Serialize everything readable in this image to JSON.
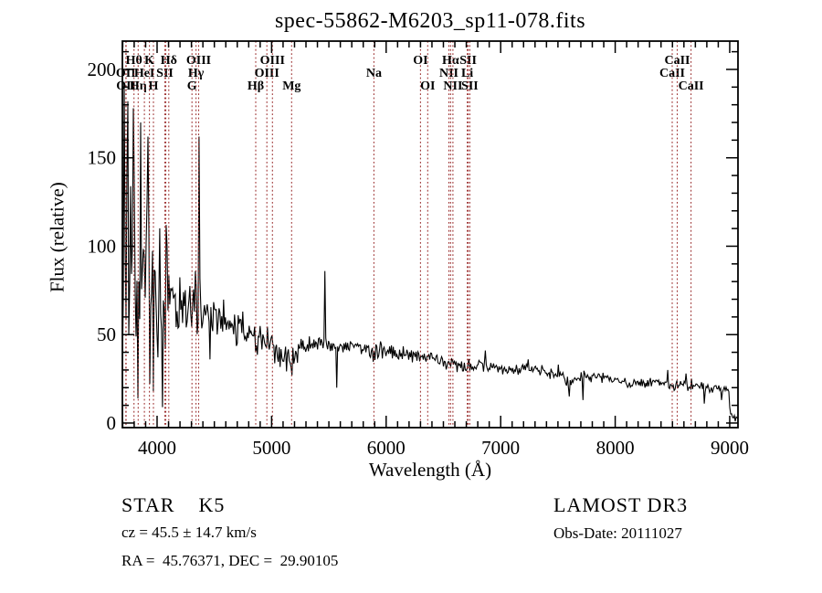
{
  "annotations": {
    "class_line": "STAR    K5",
    "cz_line": "cz = 45.5 ± 14.7 km/s",
    "radec_line": "RA =  45.76371, DEC =  29.90105",
    "survey": "LAMOST DR3",
    "obs_date": "Obs-Date: 20111027"
  },
  "chart_data": {
    "type": "line",
    "title": "spec-55862-M6203_sp11-078.fits",
    "xlabel": "Wavelength (Å)",
    "ylabel": "Flux (relative)",
    "xlim": [
      3697,
      9072
    ],
    "ylim": [
      -2.6,
      216
    ],
    "xticks": [
      4000,
      5000,
      6000,
      7000,
      8000,
      9000
    ],
    "yticks": [
      0,
      50,
      100,
      150,
      200
    ],
    "x_minor_step": 100,
    "y_minor_step": 10,
    "grid": false,
    "legend": "none",
    "series_color": "#000000",
    "line_marker_color": "#9e3434",
    "spectral_lines": [
      {
        "label": "OII",
        "wavelength": 3727,
        "row": 2
      },
      {
        "label": "OII",
        "wavelength": 3730,
        "row": 3
      },
      {
        "label": "Hθ",
        "wavelength": 3798,
        "row": 1
      },
      {
        "label": "Hη",
        "wavelength": 3835,
        "row": 3
      },
      {
        "label": "HeI",
        "wavelength": 3889,
        "row": 2
      },
      {
        "label": "K",
        "wavelength": 3933,
        "row": 1
      },
      {
        "label": "H",
        "wavelength": 3968,
        "row": 3
      },
      {
        "label": "SII",
        "wavelength": 4068,
        "row": 2
      },
      {
        "label": "",
        "wavelength": 4076,
        "row": 0
      },
      {
        "label": "Hδ",
        "wavelength": 4102,
        "row": 1
      },
      {
        "label": "G",
        "wavelength": 4305,
        "row": 3
      },
      {
        "label": "Hγ",
        "wavelength": 4340,
        "row": 2
      },
      {
        "label": "OIII",
        "wavelength": 4363,
        "row": 1
      },
      {
        "label": "Hβ",
        "wavelength": 4861,
        "row": 3
      },
      {
        "label": "OIII",
        "wavelength": 4959,
        "row": 2
      },
      {
        "label": "OIII",
        "wavelength": 5007,
        "row": 1
      },
      {
        "label": "Mg",
        "wavelength": 5175,
        "row": 3
      },
      {
        "label": "Na",
        "wavelength": 5893,
        "row": 2
      },
      {
        "label": "OI",
        "wavelength": 6300,
        "row": 1
      },
      {
        "label": "OI",
        "wavelength": 6363,
        "row": 3
      },
      {
        "label": "NII",
        "wavelength": 6548,
        "row": 2
      },
      {
        "label": "Hα",
        "wavelength": 6563,
        "row": 1
      },
      {
        "label": "NII",
        "wavelength": 6583,
        "row": 3
      },
      {
        "label": "Li",
        "wavelength": 6708,
        "row": 2
      },
      {
        "label": "SII",
        "wavelength": 6716,
        "row": 1
      },
      {
        "label": "SII",
        "wavelength": 6731,
        "row": 3
      },
      {
        "label": "CaII",
        "wavelength": 8498,
        "row": 2
      },
      {
        "label": "CaII",
        "wavelength": 8542,
        "row": 1
      },
      {
        "label": "CaII",
        "wavelength": 8662,
        "row": 3
      }
    ],
    "spectrum": {
      "envelope": [
        [
          3697,
          1
        ],
        [
          3700,
          55
        ],
        [
          3712,
          95
        ],
        [
          3725,
          92
        ],
        [
          3740,
          95
        ],
        [
          3760,
          92
        ],
        [
          3780,
          92
        ],
        [
          3800,
          90
        ],
        [
          3820,
          88
        ],
        [
          3840,
          86
        ],
        [
          3860,
          86
        ],
        [
          3880,
          82
        ],
        [
          3900,
          80
        ],
        [
          3920,
          76
        ],
        [
          3940,
          74
        ],
        [
          3960,
          72
        ],
        [
          3980,
          70
        ],
        [
          4000,
          70
        ],
        [
          4030,
          70
        ],
        [
          4060,
          71
        ],
        [
          4090,
          72
        ],
        [
          4120,
          70
        ],
        [
          4150,
          69
        ],
        [
          4180,
          68
        ],
        [
          4210,
          67
        ],
        [
          4240,
          66
        ],
        [
          4270,
          67
        ],
        [
          4300,
          68
        ],
        [
          4330,
          69
        ],
        [
          4360,
          68
        ],
        [
          4390,
          64
        ],
        [
          4420,
          63
        ],
        [
          4450,
          62
        ],
        [
          4480,
          61
        ],
        [
          4510,
          61
        ],
        [
          4540,
          60
        ],
        [
          4570,
          59
        ],
        [
          4600,
          58
        ],
        [
          4650,
          56
        ],
        [
          4700,
          55
        ],
        [
          4750,
          53
        ],
        [
          4800,
          51
        ],
        [
          4861,
          48
        ],
        [
          4910,
          47
        ],
        [
          4960,
          45
        ],
        [
          5010,
          43
        ],
        [
          5060,
          39
        ],
        [
          5110,
          37
        ],
        [
          5160,
          36
        ],
        [
          5210,
          40
        ],
        [
          5260,
          42
        ],
        [
          5310,
          43
        ],
        [
          5360,
          44
        ],
        [
          5410,
          44
        ],
        [
          5460,
          44
        ],
        [
          5510,
          44
        ],
        [
          5560,
          43
        ],
        [
          5610,
          44
        ],
        [
          5660,
          44
        ],
        [
          5710,
          44
        ],
        [
          5760,
          43
        ],
        [
          5810,
          43
        ],
        [
          5860,
          41
        ],
        [
          5893,
          39
        ],
        [
          5930,
          41
        ],
        [
          5980,
          41
        ],
        [
          6030,
          41
        ],
        [
          6080,
          40
        ],
        [
          6130,
          40
        ],
        [
          6180,
          39
        ],
        [
          6230,
          39
        ],
        [
          6280,
          38
        ],
        [
          6330,
          38
        ],
        [
          6380,
          37
        ],
        [
          6430,
          36
        ],
        [
          6480,
          35
        ],
        [
          6530,
          34
        ],
        [
          6580,
          33
        ],
        [
          6630,
          33
        ],
        [
          6680,
          32
        ],
        [
          6730,
          32
        ],
        [
          6780,
          32
        ],
        [
          6830,
          33
        ],
        [
          6880,
          32
        ],
        [
          6930,
          31
        ],
        [
          6980,
          31
        ],
        [
          7030,
          30
        ],
        [
          7080,
          30
        ],
        [
          7130,
          30
        ],
        [
          7180,
          30
        ],
        [
          7230,
          31
        ],
        [
          7280,
          30
        ],
        [
          7330,
          29
        ],
        [
          7380,
          29
        ],
        [
          7430,
          28
        ],
        [
          7480,
          27
        ],
        [
          7530,
          26
        ],
        [
          7580,
          23
        ],
        [
          7620,
          24
        ],
        [
          7660,
          25
        ],
        [
          7700,
          26
        ],
        [
          7750,
          26
        ],
        [
          7800,
          26
        ],
        [
          7850,
          26
        ],
        [
          7900,
          25
        ],
        [
          7950,
          25
        ],
        [
          8000,
          24
        ],
        [
          8060,
          24
        ],
        [
          8120,
          23
        ],
        [
          8180,
          23
        ],
        [
          8240,
          23
        ],
        [
          8300,
          22
        ],
        [
          8360,
          22
        ],
        [
          8420,
          22
        ],
        [
          8480,
          21
        ],
        [
          8540,
          21
        ],
        [
          8600,
          21
        ],
        [
          8660,
          22
        ],
        [
          8720,
          21
        ],
        [
          8780,
          20
        ],
        [
          8840,
          20
        ],
        [
          8900,
          19
        ],
        [
          8960,
          19
        ],
        [
          8995,
          18
        ],
        [
          9005,
          4
        ],
        [
          9030,
          3
        ],
        [
          9072,
          2
        ]
      ],
      "noise_sigma": [
        [
          3697,
          45
        ],
        [
          3720,
          58
        ],
        [
          3750,
          58
        ],
        [
          3780,
          52
        ],
        [
          3810,
          48
        ],
        [
          3840,
          46
        ],
        [
          3870,
          44
        ],
        [
          3900,
          42
        ],
        [
          3930,
          40
        ],
        [
          3960,
          36
        ],
        [
          4000,
          30
        ],
        [
          4050,
          26
        ],
        [
          4100,
          24
        ],
        [
          4150,
          18
        ],
        [
          4200,
          15
        ],
        [
          4250,
          13
        ],
        [
          4300,
          13
        ],
        [
          4350,
          13
        ],
        [
          4400,
          11
        ],
        [
          4500,
          9
        ],
        [
          4600,
          8
        ],
        [
          4700,
          8
        ],
        [
          4800,
          7
        ],
        [
          4900,
          7
        ],
        [
          5000,
          6
        ],
        [
          5100,
          6
        ],
        [
          5200,
          5
        ],
        [
          5300,
          5
        ],
        [
          5400,
          5
        ],
        [
          5500,
          4.5
        ],
        [
          5600,
          4.5
        ],
        [
          5700,
          4
        ],
        [
          5800,
          4
        ],
        [
          5900,
          4
        ],
        [
          6000,
          3.5
        ],
        [
          6200,
          3.5
        ],
        [
          6400,
          3
        ],
        [
          6600,
          3
        ],
        [
          6800,
          3
        ],
        [
          7000,
          2.8
        ],
        [
          7200,
          2.8
        ],
        [
          7400,
          2.6
        ],
        [
          7600,
          2.6
        ],
        [
          7800,
          2.6
        ],
        [
          8000,
          2.4
        ],
        [
          8200,
          2.4
        ],
        [
          8400,
          2.4
        ],
        [
          8600,
          2.4
        ],
        [
          8800,
          2.4
        ],
        [
          9000,
          2
        ],
        [
          9072,
          1
        ]
      ],
      "spikes": [
        [
          3712,
          193
        ],
        [
          3742,
          182
        ],
        [
          3790,
          178
        ],
        [
          3856,
          170
        ],
        [
          3916,
          162
        ],
        [
          4082,
          112
        ],
        [
          4363,
          162
        ],
        [
          5461,
          86
        ],
        [
          6868,
          41
        ],
        [
          7238,
          36
        ],
        [
          7505,
          33
        ],
        [
          8455,
          30
        ],
        [
          8620,
          28
        ]
      ],
      "dips": [
        [
          3835,
          14
        ],
        [
          3935,
          22
        ],
        [
          3970,
          18
        ],
        [
          4046,
          9
        ],
        [
          4460,
          36
        ],
        [
          4861,
          40
        ],
        [
          5180,
          27
        ],
        [
          5570,
          20
        ],
        [
          7600,
          15
        ],
        [
          7715,
          13
        ],
        [
          8780,
          11
        ],
        [
          8930,
          13
        ]
      ]
    }
  }
}
